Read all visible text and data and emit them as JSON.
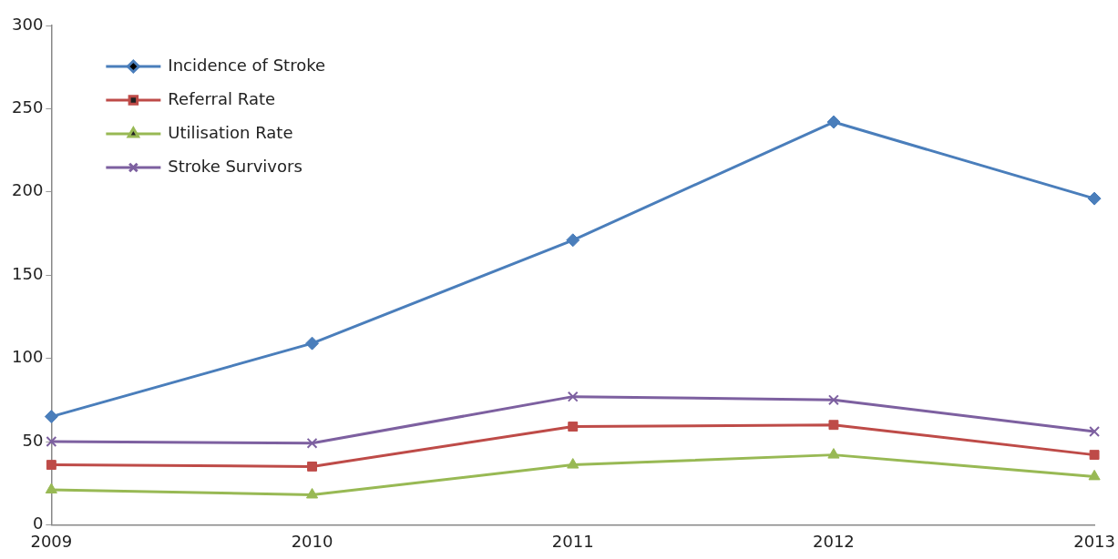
{
  "chart_data": {
    "type": "line",
    "categories": [
      "2009",
      "2010",
      "2011",
      "2012",
      "2013"
    ],
    "series": [
      {
        "name": "Incidence of Stroke",
        "color": "#4a7ebb",
        "marker": "diamond",
        "values": [
          65,
          109,
          171,
          242,
          196
        ]
      },
      {
        "name": "Referral Rate",
        "color": "#be4b48",
        "marker": "square",
        "values": [
          36,
          35,
          59,
          60,
          42
        ]
      },
      {
        "name": "Utilisation Rate",
        "color": "#98b954",
        "marker": "triangle",
        "values": [
          21,
          18,
          36,
          42,
          29
        ]
      },
      {
        "name": "Stroke Survivors",
        "color": "#7d60a0",
        "marker": "cross",
        "values": [
          50,
          49,
          77,
          75,
          56
        ]
      }
    ],
    "ylim": [
      0,
      300
    ],
    "yticks": [
      0,
      50,
      100,
      150,
      200,
      250,
      300
    ],
    "grid": false,
    "legend": "top left",
    "line_style": "solid"
  }
}
